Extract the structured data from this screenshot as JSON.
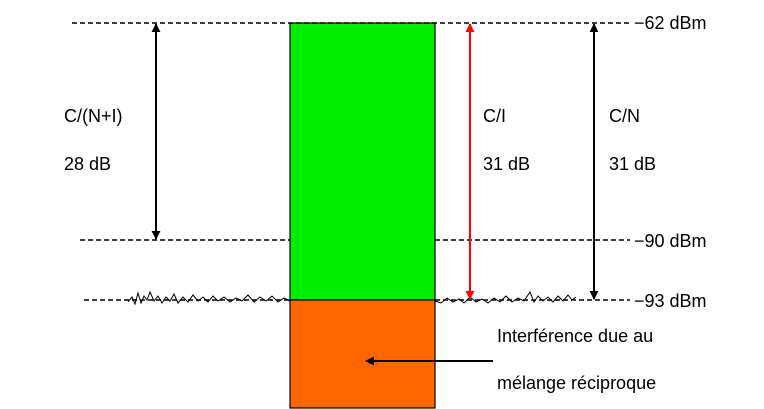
{
  "levels": {
    "top": "−62 dBm",
    "mid": "−90 dBm",
    "floor": "−93 dBm"
  },
  "measures": {
    "cni": {
      "name": "C/(N+I)",
      "value": "28 dB"
    },
    "ci": {
      "name": "C/I",
      "value": "31 dB"
    },
    "cn": {
      "name": "C/N",
      "value": "31 dB"
    }
  },
  "annotation": {
    "line1": "Interférence due au",
    "line2": "mélange réciproque"
  },
  "colors": {
    "carrier": "#00ee00",
    "interference": "#ff6600",
    "ci_arrow": "#ff0000",
    "lines": "#000000"
  }
}
